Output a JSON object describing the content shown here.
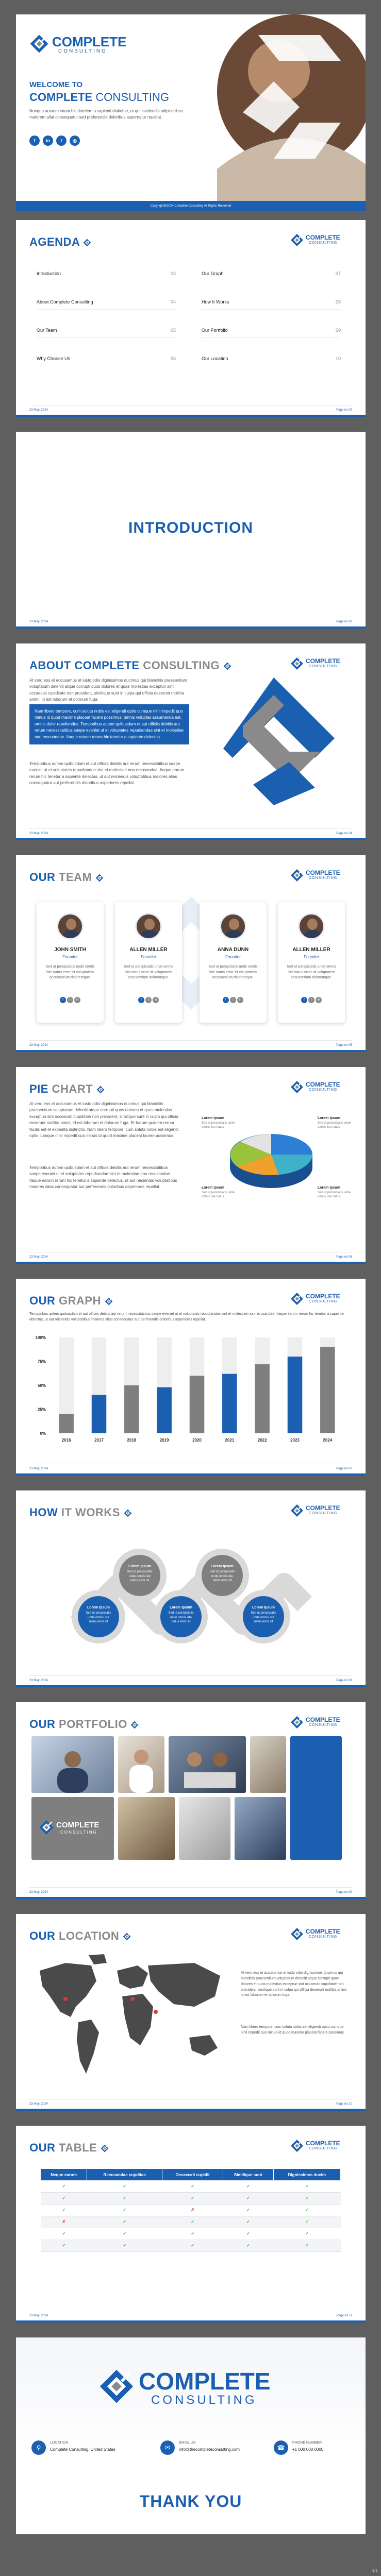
{
  "brand": {
    "name_top": "COMPLETE",
    "name_bottom": "CONSULTING",
    "accent": "#1b5fb0",
    "gray": "#8a8a8a"
  },
  "footer": {
    "date": "23 May, 2024",
    "copyright": "Copyright@2024 Complete Consulting All Rights Reserved"
  },
  "cover": {
    "welcome": "WELCOME TO",
    "brand_bold": "COMPLETE",
    "brand_light": "CONSULTING",
    "description": "Nunqua autuem intum hic dom/em o sapienti diakeher, ut qui invitiendis adipiscilibus malorem aliat consequatur sed preferendis doloribus aspernatur repellat.",
    "social": [
      "f",
      "in",
      "t",
      "◎"
    ]
  },
  "agenda": {
    "title": "AGENDA",
    "items": [
      {
        "label": "Introduction",
        "num": "03"
      },
      {
        "label": "About Complete Consulting",
        "num": "04"
      },
      {
        "label": "Our Team",
        "num": "05"
      },
      {
        "label": "Why Choose Us",
        "num": "06"
      },
      {
        "label": "Our Graph",
        "num": "07"
      },
      {
        "label": "How It Works",
        "num": "08"
      },
      {
        "label": "Our Portfolio",
        "num": "09"
      },
      {
        "label": "Our Location",
        "num": "10"
      }
    ],
    "page": "Page no 02"
  },
  "intro": {
    "title": "INTRODUCTION",
    "page": "Page no 03"
  },
  "about": {
    "title_blue": "ABOUT COMPLETE",
    "title_gray": "CONSULTING",
    "para1": "At vero eos et accusamus et iusto odio dignissimos ducimus qui blanditiis praesentium voluptatum deleniti atque corrupti quos dolores et quas molestias excepturi sint occaecati cupiditate non provident, similique sunt in culpa qui officia deserunt mollitia animi, id est laborum et dolorum fuga.",
    "highlight": "Nam libero tempore, cum soluta nobis est eligendi optio cumque nihil impedit quo minus id quod maxime placeat facere possimus, omnis voluptas assumenda est, omnis dolor repellendus. Temporibus autem quibusdam et aut officiis debitis aut rerum necessitatibus saepe eveniet ut et voluptates repudiandae sint et molestiae non recusandae. Itaque earum rerum hic tenetur a sapiente delectus.",
    "para2": "Temporibus autem quibusdam et aut officiis debitis aut rerum necessitatibus saepe eveniet ut et voluptates repudiandae sint et molestiae non recusandae. Itaque earum rerum hic tenetur a sapiente delectus, ut aut reiciendis voluptatibus maiores alias consequatur aut perferendis doloribus asperiores repellat.",
    "page": "Page no 04"
  },
  "team": {
    "title_blue": "OUR",
    "title_gray": "TEAM",
    "members": [
      {
        "name": "JOHN SMITH",
        "role": "Founder",
        "desc": "Sed ut perspiciatis unde omnis iste natus error sit voluptatem accusantium doloremque."
      },
      {
        "name": "ALLEN MILLER",
        "role": "Founder",
        "desc": "Sed ut perspiciatis unde omnis iste natus error sit voluptatem accusantium doloremque."
      },
      {
        "name": "ANNA DUNN",
        "role": "Founder",
        "desc": "Sed ut perspiciatis unde omnis iste natus error sit voluptatem accusantium doloremque."
      },
      {
        "name": "ALLEN MILLER",
        "role": "Founder",
        "desc": "Sed ut perspiciatis unde omnis iste natus error sit voluptatem accusantium doloremque."
      }
    ],
    "page": "Page no 05"
  },
  "pie": {
    "title_blue": "PIE",
    "title_gray": "CHART",
    "para1": "At vero eos et accusamus et iusto odio dignissimos ducimus qui blanditiis praesentium voluptatum deleniti atque corrupti quos dolores et quas molestias excepturi sint occaecati cupiditate non provident, similique sunt in culpa qui officia deserunt mollitia animi, id est laborum et dolorum fuga. Et harum quidem rerum facilis est et expedita distinctio. Nam libero tempore, cum soluta nobis est eligendi optio cumque nihil impedit quo minus id quod maxime placeat facere possimus.",
    "para2": "Temporibus autem quibusdam et aut officiis debitis aut rerum necessitatibus saepe eveniet ut et voluptates repudiandae sint et molestiae non recusandae. Itaque earum rerum hic tenetur a sapiente delectus, ut aut reiciendis voluptatibus maiores alias consequatur aut perferendis doloribus asperiores repellat.",
    "labels": [
      {
        "head": "Lorem Ipsum",
        "text": "Sed ut perspiciatis unde omnis iste natus"
      },
      {
        "head": "Lorem Ipsum",
        "text": "Sed ut perspiciatis unde omnis iste natus"
      },
      {
        "head": "Lorem Ipsum",
        "text": "Sed ut perspiciatis unde omnis iste natus"
      },
      {
        "head": "Lorem Ipsum",
        "text": "Sed ut perspiciatis unde omnis iste natus"
      }
    ],
    "page": "Page no 06"
  },
  "graph": {
    "title_blue": "OUR",
    "title_gray": "GRAPH",
    "text": "Temporibus autem quibusdam et aut officiis debitis aut rerum necessitatibus saepe eveniet ut et voluptates repudiandae sint et molestiae non recusandae. Itaque earum rerum hic tenetur a sapiente delectus, ut aut reiciendis voluptatibus maiores alias consequatur aut perferendis doloribus asperiores repellat.",
    "page": "Page no 07"
  },
  "chart_data": {
    "type": "bar",
    "categories": [
      "2016",
      "2017",
      "2018",
      "2019",
      "2020",
      "2021",
      "2022",
      "2023",
      "2024"
    ],
    "values": [
      20,
      40,
      50,
      48,
      60,
      62,
      72,
      80,
      90
    ],
    "bar_colors": [
      "#7f7f7f",
      "#1b5fb0",
      "#7f7f7f",
      "#1b5fb0",
      "#7f7f7f",
      "#1b5fb0",
      "#7f7f7f",
      "#1b5fb0",
      "#7f7f7f"
    ],
    "track_color": "#eeeeee",
    "ylim": [
      0,
      100
    ],
    "yticks": [
      "100%",
      "75%",
      "50%",
      "25%",
      "0%"
    ],
    "title": "",
    "xlabel": "",
    "ylabel": "",
    "grid": false
  },
  "how": {
    "title_blue": "HOW",
    "title_gray": "IT WORKS",
    "steps": [
      {
        "head": "Lorem Ipsum",
        "text": "Sed ut perspiciatis unde omnis iste natus error sit"
      },
      {
        "head": "Lorem Ipsum",
        "text": "Sed ut perspiciatis unde omnis iste natus error sit"
      },
      {
        "head": "Lorem Ipsum",
        "text": "Sed ut perspiciatis unde omnis iste natus error sit"
      },
      {
        "head": "Lorem Ipsum",
        "text": "Sed ut perspiciatis unde omnis iste natus error sit"
      },
      {
        "head": "Lorem Ipsum",
        "text": "Sed ut perspiciatis unde omnis iste natus error sit"
      }
    ],
    "page": "Page no 08"
  },
  "portfolio": {
    "title_blue": "OUR",
    "title_gray": "PORTFOLIO",
    "page": "Page no 09"
  },
  "location": {
    "title_blue": "OUR",
    "title_gray": "LOCATION",
    "para1": "At vero eos et accusamus et iusto odio dignissimos ducimus qui blanditiis praesentium voluptatum deleniti atque corrupti quos dolores et quas molestias excepturi sint occaecati cupiditate non provident, similique sunt in culpa qui officia deserunt mollitia animi, id est laborum et dolorum fuga.",
    "para2": "Nam libero tempore, cum soluta nobis est eligendi optio cumque nihil impedit quo minus id quod maxime placeat facere possimus.",
    "page": "Page no 10"
  },
  "table": {
    "title_blue": "OUR",
    "title_gray": "TABLE",
    "headers": [
      "Neque earum",
      "Recusandae cupditas",
      "Occaecati cupidit",
      "Similique sunt",
      "Dignissimos ducim"
    ],
    "rows": [
      [
        "✓",
        "✓",
        "✓",
        "✓",
        "✓"
      ],
      [
        "✓",
        "✓",
        "✓",
        "✓",
        "✓"
      ],
      [
        "✓",
        "✓",
        "✗",
        "✓",
        "✓"
      ],
      [
        "✗",
        "✓",
        "✓",
        "✓",
        "✓"
      ],
      [
        "✓",
        "✓",
        "✓",
        "✓",
        "✓"
      ],
      [
        "✓",
        "✓",
        "✓",
        "✓",
        "✓"
      ]
    ],
    "page": "Page no 11"
  },
  "thanks": {
    "location_head": "LOCATION",
    "location_value": "Complete Consulting, United States",
    "email_head": "EMAIL US",
    "email_value": "info@thecompleteconsulting.com",
    "phone_head": "PHONE NUMBER",
    "phone_value": "+1 000 000 0000",
    "title": "THANK YOU"
  },
  "doc_page_count": "1/1"
}
